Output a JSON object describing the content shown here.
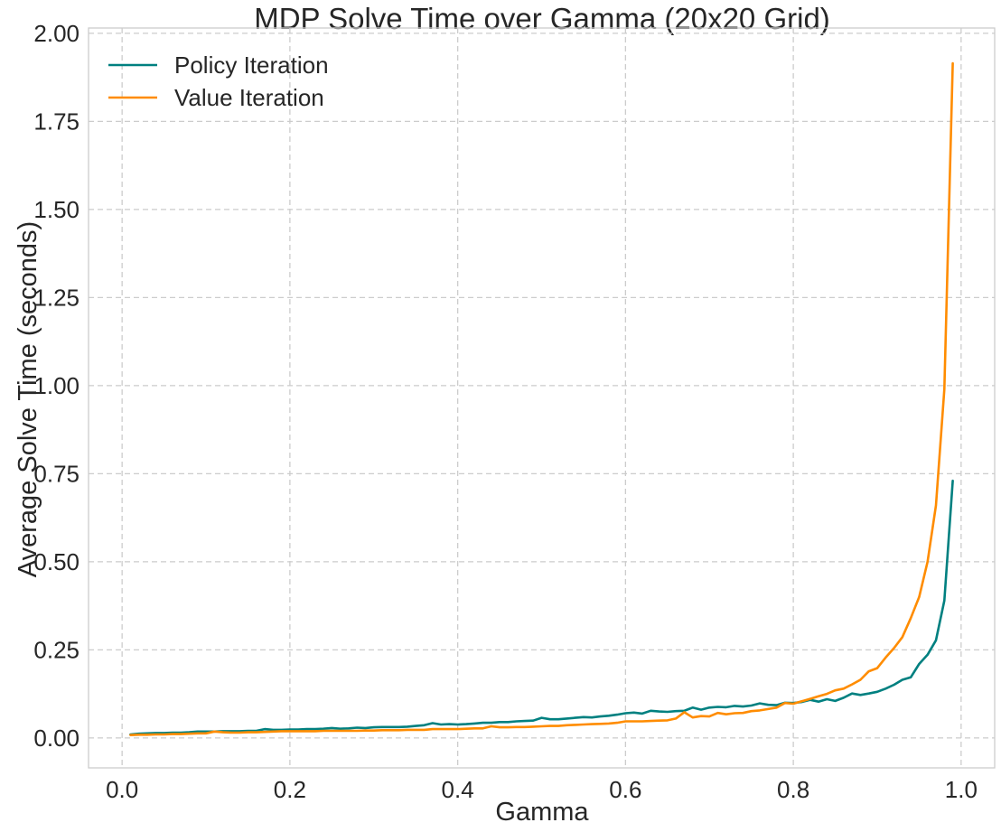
{
  "chart_data": {
    "type": "line",
    "title": "MDP Solve Time over Gamma (20x20 Grid)",
    "xlabel": "Gamma",
    "ylabel": "Average Solve Time (seconds)",
    "xlim": [
      -0.04,
      1.04
    ],
    "ylim": [
      -0.085,
      2.015
    ],
    "grid": true,
    "legend_position": "top-left",
    "xticks": [
      {
        "value": 0.0,
        "label": "0.0"
      },
      {
        "value": 0.2,
        "label": "0.2"
      },
      {
        "value": 0.4,
        "label": "0.4"
      },
      {
        "value": 0.6,
        "label": "0.6"
      },
      {
        "value": 0.8,
        "label": "0.8"
      },
      {
        "value": 1.0,
        "label": "1.0"
      }
    ],
    "yticks": [
      {
        "value": 0.0,
        "label": "0.00"
      },
      {
        "value": 0.25,
        "label": "0.25"
      },
      {
        "value": 0.5,
        "label": "0.50"
      },
      {
        "value": 0.75,
        "label": "0.75"
      },
      {
        "value": 1.0,
        "label": "1.00"
      },
      {
        "value": 1.25,
        "label": "1.25"
      },
      {
        "value": 1.5,
        "label": "1.50"
      },
      {
        "value": 1.75,
        "label": "1.75"
      },
      {
        "value": 2.0,
        "label": "2.00"
      }
    ],
    "x": [
      0.01,
      0.02,
      0.03,
      0.04,
      0.05,
      0.06,
      0.07,
      0.08,
      0.09,
      0.1,
      0.11,
      0.12,
      0.13,
      0.14,
      0.15,
      0.16,
      0.17,
      0.18,
      0.19,
      0.2,
      0.21,
      0.22,
      0.23,
      0.24,
      0.25,
      0.26,
      0.27,
      0.28,
      0.29,
      0.3,
      0.31,
      0.32,
      0.33,
      0.34,
      0.35,
      0.36,
      0.37,
      0.38,
      0.39,
      0.4,
      0.41,
      0.42,
      0.43,
      0.44,
      0.45,
      0.46,
      0.47,
      0.48,
      0.49,
      0.5,
      0.51,
      0.52,
      0.53,
      0.54,
      0.55,
      0.56,
      0.57,
      0.58,
      0.59,
      0.6,
      0.61,
      0.62,
      0.63,
      0.64,
      0.65,
      0.66,
      0.67,
      0.68,
      0.69,
      0.7,
      0.71,
      0.72,
      0.73,
      0.74,
      0.75,
      0.76,
      0.77,
      0.78,
      0.79,
      0.8,
      0.81,
      0.82,
      0.83,
      0.84,
      0.85,
      0.86,
      0.87,
      0.88,
      0.89,
      0.9,
      0.91,
      0.92,
      0.93,
      0.94,
      0.95,
      0.96,
      0.97,
      0.98,
      0.99
    ],
    "series": [
      {
        "name": "Policy Iteration",
        "color": "#008080",
        "values": [
          0.01,
          0.012,
          0.013,
          0.014,
          0.014,
          0.015,
          0.015,
          0.016,
          0.018,
          0.018,
          0.018,
          0.019,
          0.019,
          0.019,
          0.02,
          0.02,
          0.025,
          0.023,
          0.023,
          0.024,
          0.024,
          0.025,
          0.025,
          0.026,
          0.028,
          0.026,
          0.027,
          0.029,
          0.028,
          0.03,
          0.031,
          0.031,
          0.031,
          0.032,
          0.034,
          0.036,
          0.042,
          0.038,
          0.039,
          0.038,
          0.039,
          0.041,
          0.043,
          0.043,
          0.045,
          0.045,
          0.047,
          0.048,
          0.049,
          0.057,
          0.053,
          0.053,
          0.055,
          0.057,
          0.059,
          0.058,
          0.061,
          0.063,
          0.066,
          0.07,
          0.072,
          0.069,
          0.077,
          0.075,
          0.074,
          0.076,
          0.077,
          0.086,
          0.08,
          0.086,
          0.088,
          0.087,
          0.091,
          0.089,
          0.092,
          0.098,
          0.094,
          0.093,
          0.1,
          0.099,
          0.102,
          0.108,
          0.103,
          0.11,
          0.105,
          0.114,
          0.126,
          0.122,
          0.126,
          0.131,
          0.14,
          0.151,
          0.165,
          0.172,
          0.21,
          0.236,
          0.277,
          0.39,
          0.73
        ]
      },
      {
        "name": "Value Iteration",
        "color": "#ff8c00",
        "values": [
          0.008,
          0.009,
          0.009,
          0.01,
          0.01,
          0.011,
          0.011,
          0.012,
          0.013,
          0.013,
          0.018,
          0.016,
          0.015,
          0.015,
          0.016,
          0.016,
          0.017,
          0.018,
          0.019,
          0.019,
          0.019,
          0.019,
          0.019,
          0.02,
          0.02,
          0.02,
          0.02,
          0.02,
          0.021,
          0.021,
          0.022,
          0.022,
          0.022,
          0.023,
          0.023,
          0.023,
          0.025,
          0.025,
          0.025,
          0.025,
          0.026,
          0.027,
          0.027,
          0.033,
          0.03,
          0.03,
          0.031,
          0.031,
          0.032,
          0.033,
          0.034,
          0.034,
          0.036,
          0.037,
          0.038,
          0.039,
          0.04,
          0.041,
          0.043,
          0.047,
          0.047,
          0.047,
          0.048,
          0.049,
          0.05,
          0.055,
          0.073,
          0.058,
          0.062,
          0.061,
          0.071,
          0.067,
          0.07,
          0.071,
          0.076,
          0.078,
          0.082,
          0.086,
          0.099,
          0.097,
          0.104,
          0.111,
          0.118,
          0.125,
          0.135,
          0.14,
          0.152,
          0.165,
          0.189,
          0.198,
          0.228,
          0.255,
          0.286,
          0.34,
          0.4,
          0.5,
          0.66,
          0.99,
          1.915
        ]
      }
    ]
  }
}
